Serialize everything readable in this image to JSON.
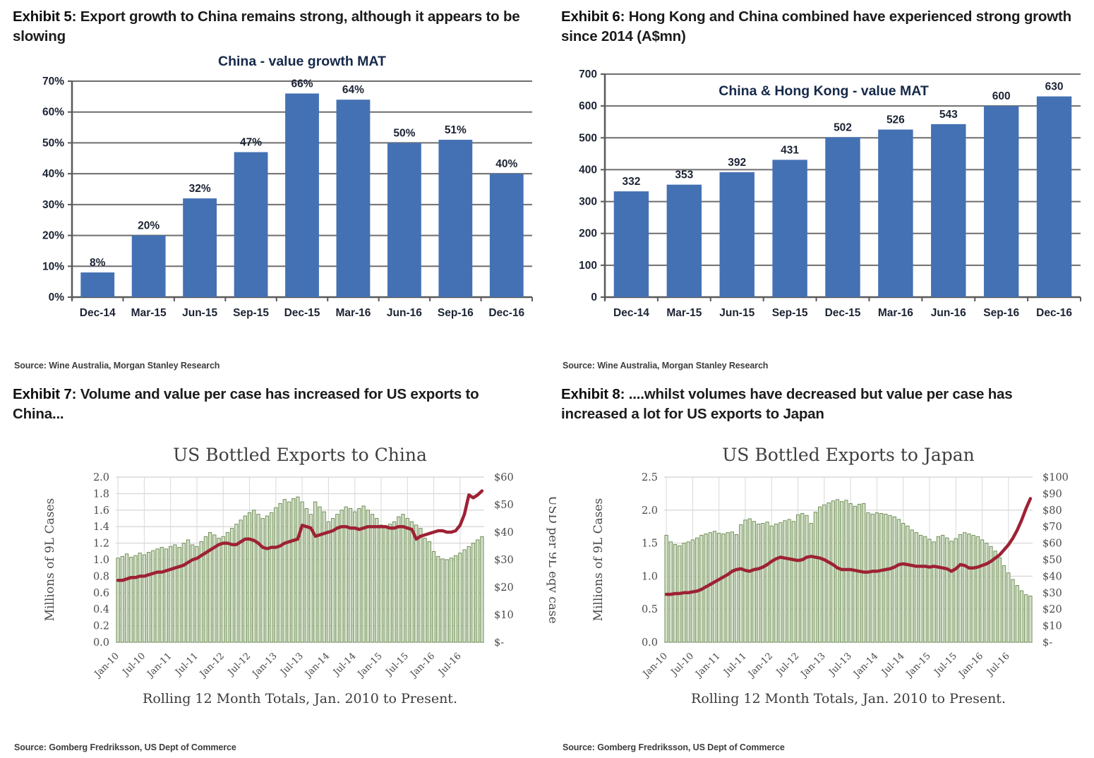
{
  "panels": [
    {
      "exhibit_label": "Exhibit 5:",
      "caption": "Export growth to China remains strong, although it appears to be slowing",
      "source": "Source: Wine Australia, Morgan Stanley Research"
    },
    {
      "exhibit_label": "Exhibit 6:",
      "caption": "Hong Kong and China combined have experienced strong growth since 2014 (A$mn)",
      "source": "Source: Wine Australia, Morgan Stanley Research"
    },
    {
      "exhibit_label": "Exhibit 7:",
      "caption": "Volume and value per case has increased for US exports to China...",
      "source": "Source: Gomberg Fredriksson, US Dept of Commerce"
    },
    {
      "exhibit_label": "Exhibit 8:",
      "caption": "....whilst volumes have decreased but value per case has increased a lot for US exports to Japan",
      "source": "Source: Gomberg Fredriksson, US Dept of Commerce"
    }
  ],
  "chart_data": [
    {
      "type": "bar",
      "title": "China - value growth MAT",
      "title_inside": false,
      "categories": [
        "Dec-14",
        "Mar-15",
        "Jun-15",
        "Sep-15",
        "Dec-15",
        "Mar-16",
        "Jun-16",
        "Sep-16",
        "Dec-16"
      ],
      "values": [
        8,
        20,
        32,
        47,
        66,
        64,
        50,
        51,
        40
      ],
      "value_labels": [
        "8%",
        "20%",
        "32%",
        "47%",
        "66%",
        "64%",
        "50%",
        "51%",
        "40%"
      ],
      "ylim": [
        0,
        70
      ],
      "ytick_labels": [
        "0%",
        "10%",
        "20%",
        "30%",
        "40%",
        "50%",
        "60%",
        "70%"
      ],
      "grid": true,
      "legend": "none",
      "bar_color": "#4471B3",
      "grid_color": "#6e6e6e",
      "axis_color": "#595959"
    },
    {
      "type": "bar",
      "title": "China & Hong Kong - value MAT",
      "title_inside": true,
      "categories": [
        "Dec-14",
        "Mar-15",
        "Jun-15",
        "Sep-15",
        "Dec-15",
        "Mar-16",
        "Jun-16",
        "Sep-16",
        "Dec-16"
      ],
      "values": [
        332,
        353,
        392,
        431,
        502,
        526,
        543,
        600,
        630
      ],
      "value_labels": [
        "332",
        "353",
        "392",
        "431",
        "502",
        "526",
        "543",
        "600",
        "630"
      ],
      "ylim": [
        0,
        700
      ],
      "ytick_labels": [
        "0",
        "100",
        "200",
        "300",
        "400",
        "500",
        "600",
        "700"
      ],
      "grid": true,
      "legend": "none",
      "bar_color": "#4471B3",
      "grid_color": "#6e6e6e",
      "axis_color": "#595959"
    },
    {
      "type": "combo",
      "title": "US Bottled Exports to China",
      "xlabel": "Rolling 12 Month Totals, Jan. 2010 to Present.",
      "x_tick_labels": [
        "Jan-10",
        "Jul-10",
        "Jan-11",
        "Jul-11",
        "Jan-12",
        "Jul-12",
        "Jan-13",
        "Jul-13",
        "Jan-14",
        "Jul-14",
        "Jan-15",
        "Jul-15",
        "Jan-16",
        "Jul-16"
      ],
      "x_tick_step": 6,
      "y_left": {
        "label": "Millions of 9L Cases",
        "ticks": [
          "0.0",
          "0.2",
          "0.4",
          "0.6",
          "0.8",
          "1.0",
          "1.2",
          "1.4",
          "1.6",
          "1.8",
          "2.0"
        ],
        "max": 2.0
      },
      "y_right": {
        "label": "USD per 9L eqv case",
        "ticks": [
          "$-",
          "$10",
          "$20",
          "$30",
          "$40",
          "$50",
          "$60"
        ],
        "max": 60
      },
      "bars": [
        1.02,
        1.04,
        1.07,
        1.03,
        1.05,
        1.08,
        1.06,
        1.09,
        1.11,
        1.13,
        1.15,
        1.13,
        1.16,
        1.18,
        1.15,
        1.2,
        1.24,
        1.18,
        1.16,
        1.22,
        1.28,
        1.33,
        1.3,
        1.26,
        1.28,
        1.33,
        1.38,
        1.43,
        1.48,
        1.53,
        1.57,
        1.6,
        1.55,
        1.5,
        1.53,
        1.57,
        1.63,
        1.68,
        1.73,
        1.7,
        1.74,
        1.76,
        1.7,
        1.62,
        1.55,
        1.7,
        1.64,
        1.58,
        1.46,
        1.5,
        1.55,
        1.6,
        1.64,
        1.62,
        1.58,
        1.62,
        1.65,
        1.6,
        1.55,
        1.5,
        1.42,
        1.4,
        1.43,
        1.46,
        1.52,
        1.55,
        1.5,
        1.46,
        1.42,
        1.38,
        1.26,
        1.22,
        1.1,
        1.04,
        1.01,
        1.0,
        1.02,
        1.05,
        1.08,
        1.12,
        1.16,
        1.2,
        1.24,
        1.28
      ],
      "line": [
        22.5,
        22.5,
        23,
        23.5,
        23.5,
        24,
        24,
        24.5,
        25,
        25.5,
        25.5,
        26,
        26.5,
        27,
        27.5,
        28,
        29,
        30,
        30.5,
        31.5,
        32.5,
        33.5,
        34.5,
        35.5,
        36,
        36,
        35.5,
        35.5,
        36.5,
        37.5,
        37.5,
        37,
        36,
        34.5,
        34,
        34.5,
        34.5,
        35,
        36,
        36.5,
        37,
        37.5,
        42.5,
        42,
        41.5,
        38.5,
        39,
        39.5,
        40,
        40.5,
        41.5,
        42,
        42,
        41.5,
        41.5,
        41,
        41.5,
        42,
        42,
        42,
        42,
        42,
        41.5,
        41.5,
        42,
        42,
        41.5,
        41,
        37.5,
        38.5,
        39,
        39.5,
        40,
        40.5,
        40.5,
        40,
        40,
        40.5,
        42.5,
        46.5,
        53.5,
        52.5,
        53.5,
        55
      ],
      "grid": true,
      "legend": "none",
      "bar_fill": "#D2DEC6",
      "bar_stroke": "#68894F",
      "line_color": "#9E2134",
      "grid_color": "#d9d9d9"
    },
    {
      "type": "combo",
      "title": "US Bottled Exports to Japan",
      "xlabel": "Rolling 12 Month Totals, Jan. 2010 to Present.",
      "x_tick_labels": [
        "Jan-10",
        "Jul-10",
        "Jan-11",
        "Jul-11",
        "Jan-12",
        "Jul-12",
        "Jan-13",
        "Jul-13",
        "Jan-14",
        "Jul-14",
        "Jan-15",
        "Jul-15",
        "Jan-16",
        "Jul-16"
      ],
      "x_tick_step": 6,
      "y_left": {
        "label": "Millions of 9L Cases",
        "ticks": [
          "0.0",
          "0.5",
          "1.0",
          "1.5",
          "2.0",
          "2.5"
        ],
        "max": 2.5
      },
      "y_right": {
        "label": "USD per 9L eqv case",
        "ticks": [
          "$-",
          "$10",
          "$20",
          "$30",
          "$40",
          "$50",
          "$60",
          "$70",
          "$80",
          "$90",
          "$100"
        ],
        "max": 100
      },
      "bars": [
        1.62,
        1.52,
        1.48,
        1.46,
        1.5,
        1.52,
        1.55,
        1.58,
        1.62,
        1.64,
        1.66,
        1.68,
        1.65,
        1.64,
        1.66,
        1.67,
        1.63,
        1.78,
        1.85,
        1.87,
        1.83,
        1.79,
        1.8,
        1.82,
        1.76,
        1.79,
        1.81,
        1.84,
        1.86,
        1.83,
        1.93,
        1.95,
        1.92,
        1.8,
        1.97,
        2.05,
        2.08,
        2.11,
        2.14,
        2.16,
        2.13,
        2.15,
        2.1,
        2.06,
        2.09,
        2.1,
        1.96,
        1.94,
        1.96,
        1.95,
        1.94,
        1.92,
        1.9,
        1.86,
        1.8,
        1.76,
        1.7,
        1.66,
        1.62,
        1.6,
        1.56,
        1.52,
        1.6,
        1.62,
        1.58,
        1.53,
        1.57,
        1.63,
        1.66,
        1.64,
        1.62,
        1.6,
        1.55,
        1.5,
        1.45,
        1.38,
        1.28,
        1.16,
        1.05,
        0.95,
        0.86,
        0.78,
        0.72,
        0.7
      ],
      "line": [
        29,
        29,
        29.5,
        29.5,
        30,
        30,
        30.5,
        31,
        32,
        33.5,
        35,
        36.5,
        38,
        39.5,
        41,
        43,
        44,
        44.5,
        43.5,
        43,
        44,
        44.5,
        45.5,
        47,
        49,
        50.5,
        51.5,
        51,
        50.5,
        50,
        49.5,
        50,
        51.5,
        52,
        51.5,
        51,
        50,
        48.5,
        47,
        45,
        44,
        44,
        44,
        43.5,
        43,
        42.5,
        42.5,
        43,
        43,
        43.5,
        44,
        44.5,
        45.5,
        47,
        47.5,
        47,
        46.5,
        46,
        46,
        46,
        45.5,
        46,
        45.5,
        45,
        44.5,
        43,
        44.5,
        47,
        46.5,
        45,
        45,
        45.5,
        46.5,
        47.5,
        49,
        51,
        53,
        56,
        59,
        63,
        68,
        74,
        81,
        87
      ],
      "grid": true,
      "legend": "none",
      "bar_fill": "#D2DEC6",
      "bar_stroke": "#68894F",
      "line_color": "#9E2134",
      "grid_color": "#d9d9d9"
    }
  ]
}
